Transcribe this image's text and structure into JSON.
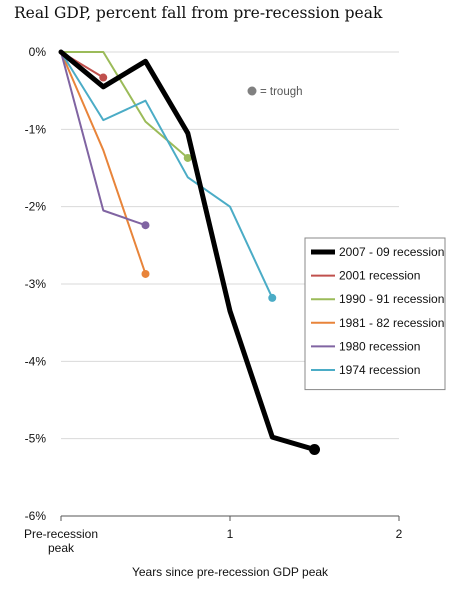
{
  "chart_data": {
    "type": "line",
    "title": "Real GDP, percent fall from pre-recession peak",
    "xlabel": "Years since pre-recession GDP peak",
    "ylabel": "",
    "xlim": [
      0,
      2
    ],
    "ylim": [
      -6,
      0
    ],
    "x_ticks": [
      {
        "value": 0,
        "label": "Pre-recession peak",
        "lines": [
          "Pre-recession",
          "peak"
        ]
      },
      {
        "value": 1,
        "label": "1",
        "lines": [
          "1"
        ]
      },
      {
        "value": 2,
        "label": "2",
        "lines": [
          "2"
        ]
      }
    ],
    "y_ticks": [
      {
        "value": 0,
        "label": "0%"
      },
      {
        "value": -1,
        "label": "-1%"
      },
      {
        "value": -2,
        "label": "-2%"
      },
      {
        "value": -3,
        "label": "-3%"
      },
      {
        "value": -4,
        "label": "-4%"
      },
      {
        "value": -5,
        "label": "-5%"
      },
      {
        "value": -6,
        "label": "-6%"
      }
    ],
    "grid": true,
    "legend_position": "right",
    "trough_note": "= trough",
    "trough_marker_color": "#808080",
    "series": [
      {
        "name": "2007 - 09 recession",
        "color": "#000000",
        "bold": true,
        "x": [
          0,
          0.25,
          0.5,
          0.75,
          1.0,
          1.25,
          1.5
        ],
        "y": [
          0,
          -0.45,
          -0.12,
          -1.05,
          -3.35,
          -4.98,
          -5.14
        ]
      },
      {
        "name": "2001 recession",
        "color": "#c0504d",
        "bold": false,
        "x": [
          0,
          0.25
        ],
        "y": [
          0,
          -0.33
        ]
      },
      {
        "name": "1990 - 91 recession",
        "color": "#9bbb59",
        "bold": false,
        "x": [
          0,
          0.25,
          0.5,
          0.75
        ],
        "y": [
          0,
          0,
          -0.9,
          -1.37
        ]
      },
      {
        "name": "1981 - 82 recession",
        "color": "#e8843a",
        "bold": false,
        "x": [
          0,
          0.25,
          0.5
        ],
        "y": [
          0,
          -1.27,
          -2.87
        ]
      },
      {
        "name": "1980 recession",
        "color": "#8064a2",
        "bold": false,
        "x": [
          0,
          0.25,
          0.5
        ],
        "y": [
          0,
          -2.05,
          -2.24
        ]
      },
      {
        "name": "1974 recession",
        "color": "#4bacc6",
        "bold": false,
        "x": [
          0,
          0.25,
          0.5,
          0.75,
          1.0,
          1.25
        ],
        "y": [
          0,
          -0.88,
          -0.63,
          -1.62,
          -2.0,
          -3.18
        ]
      }
    ]
  }
}
